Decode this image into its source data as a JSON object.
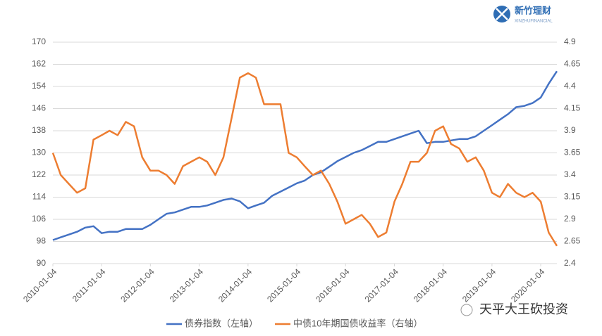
{
  "chart_data": {
    "type": "line",
    "logo": {
      "name": "新竹理财",
      "subtitle": "XINZHUFINANCIAL"
    },
    "watermark": "天平大王砍投资",
    "x": [
      "2010-01-04",
      "2010-03-04",
      "2010-05-04",
      "2010-07-04",
      "2010-09-04",
      "2010-11-04",
      "2011-01-04",
      "2011-03-04",
      "2011-05-04",
      "2011-07-04",
      "2011-09-04",
      "2011-11-04",
      "2012-01-04",
      "2012-03-04",
      "2012-05-04",
      "2012-07-04",
      "2012-09-04",
      "2012-11-04",
      "2013-01-04",
      "2013-03-04",
      "2013-05-04",
      "2013-07-04",
      "2013-09-04",
      "2013-11-04",
      "2014-01-04",
      "2014-03-04",
      "2014-05-04",
      "2014-07-04",
      "2014-09-04",
      "2014-11-04",
      "2015-01-04",
      "2015-03-04",
      "2015-05-04",
      "2015-07-04",
      "2015-09-04",
      "2015-11-04",
      "2016-01-04",
      "2016-03-04",
      "2016-05-04",
      "2016-07-04",
      "2016-09-04",
      "2016-11-04",
      "2017-01-04",
      "2017-03-04",
      "2017-05-04",
      "2017-07-04",
      "2017-09-04",
      "2017-11-04",
      "2018-01-04",
      "2018-03-04",
      "2018-05-04",
      "2018-07-04",
      "2018-09-04",
      "2018-11-04",
      "2019-01-04",
      "2019-03-04",
      "2019-05-04",
      "2019-07-04",
      "2019-09-04",
      "2019-11-04",
      "2020-01-04",
      "2020-03-04",
      "2020-05-04"
    ],
    "series": [
      {
        "name": "债券指数（左轴）",
        "color": "#4472c4",
        "axis": "y",
        "values": [
          98.5,
          99.5,
          100.5,
          101.5,
          103,
          103.5,
          101,
          101.5,
          101.5,
          102.5,
          102.5,
          102.5,
          104,
          106,
          108,
          108.5,
          109.5,
          110.5,
          110.5,
          111,
          112,
          113,
          113.5,
          112.5,
          110,
          111,
          112,
          114.5,
          116,
          117.5,
          119,
          120,
          122,
          123,
          125,
          127,
          128.5,
          130,
          131,
          132.5,
          134,
          134,
          135,
          136,
          137,
          138,
          133.5,
          134,
          134,
          134.5,
          135,
          135,
          136,
          138,
          140,
          142,
          144,
          146.5,
          147,
          148,
          150,
          155,
          159.5
        ]
      },
      {
        "name": "中债10年期国债收益率（右轴）",
        "color": "#ed7d31",
        "axis": "y2",
        "values": [
          3.65,
          3.4,
          3.3,
          3.2,
          3.25,
          3.8,
          3.85,
          3.9,
          3.85,
          4.0,
          3.95,
          3.6,
          3.45,
          3.45,
          3.4,
          3.3,
          3.5,
          3.55,
          3.6,
          3.55,
          3.4,
          3.6,
          4.05,
          4.5,
          4.55,
          4.5,
          4.2,
          4.2,
          4.2,
          3.65,
          3.6,
          3.5,
          3.4,
          3.45,
          3.3,
          3.1,
          2.85,
          2.9,
          2.95,
          2.85,
          2.7,
          2.75,
          3.1,
          3.3,
          3.55,
          3.55,
          3.65,
          3.9,
          3.95,
          3.75,
          3.7,
          3.55,
          3.6,
          3.45,
          3.2,
          3.15,
          3.3,
          3.2,
          3.15,
          3.2,
          3.1,
          2.75,
          2.6
        ]
      }
    ],
    "xlim": [
      "2010-01-04",
      "2020-05-04"
    ],
    "xticks": [
      "2010-01-04",
      "2011-01-04",
      "2012-01-04",
      "2013-01-04",
      "2014-01-04",
      "2015-01-04",
      "2016-01-04",
      "2017-01-04",
      "2018-01-04",
      "2019-01-04",
      "2020-01-04"
    ],
    "ylim": [
      90,
      170
    ],
    "yticks": [
      90,
      98,
      106,
      114,
      122,
      130,
      138,
      146,
      154,
      162,
      170
    ],
    "y2lim": [
      2.4,
      4.9
    ],
    "y2ticks": [
      2.4,
      2.65,
      2.9,
      3.15,
      3.4,
      3.65,
      3.9,
      4.15,
      4.4,
      4.65,
      4.9
    ],
    "grid": true,
    "legend": "bottom"
  }
}
